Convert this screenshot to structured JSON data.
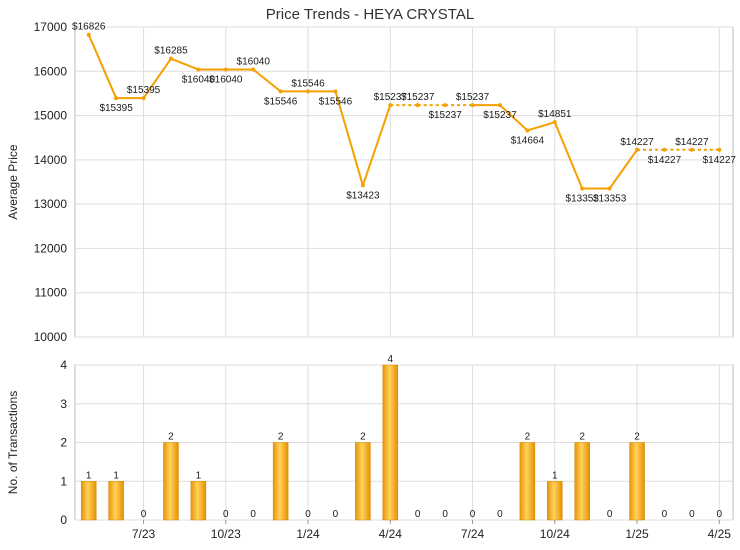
{
  "chart_data": [
    {
      "type": "line",
      "title": "Price Trends - HEYA CRYSTAL",
      "ylabel": "Average Price",
      "ylim": [
        10000,
        17000
      ],
      "yticks": [
        10000,
        11000,
        12000,
        13000,
        14000,
        15000,
        16000,
        17000
      ],
      "grid": true,
      "x": [
        "May 2023",
        "Jun 2023",
        "Jul 2023",
        "Aug 2023",
        "Sep 2023",
        "Oct 2023",
        "Nov 2023",
        "Dec 2023",
        "Jan 2024",
        "Feb 2024",
        "Mar 2024",
        "Apr 2024",
        "May 2024",
        "Jun 2024",
        "Jul 2024",
        "Aug 2024",
        "Sep 2024",
        "Oct 2024",
        "Nov 2024",
        "Dec 2024",
        "Jan 2025",
        "Feb 2025",
        "Mar 2025",
        "Apr 2025"
      ],
      "series": [
        {
          "values": [
            16826,
            15395,
            15395,
            16285,
            16040,
            16040,
            16040,
            15546,
            15546,
            15546,
            13423,
            15237,
            15237,
            15237,
            15237,
            15237,
            14664,
            14851,
            13353,
            13353,
            14227,
            14227,
            14227,
            14227
          ],
          "labels": [
            "$16826",
            "$15395",
            "$15395",
            "$16285",
            "$16040",
            "$16040",
            "$16040",
            "$15546",
            "$15546",
            "$15546",
            "$13423",
            "$15237",
            "$15237",
            "$15237",
            "$15237",
            "$15237",
            "$14664",
            "$14851",
            "$13353",
            "$13353",
            "$14227",
            "$14227",
            "$14227",
            "$14227"
          ],
          "solid": [
            true,
            true,
            true,
            true,
            true,
            true,
            true,
            true,
            true,
            true,
            true,
            true,
            false,
            false,
            false,
            true,
            true,
            true,
            true,
            true,
            true,
            false,
            false,
            false
          ]
        }
      ],
      "color": "#f5a000"
    },
    {
      "type": "bar",
      "ylabel": "No. of Transactions",
      "ylim": [
        0,
        4
      ],
      "yticks": [
        0,
        1,
        2,
        3,
        4
      ],
      "grid": true,
      "categories": [
        "May 2023",
        "Jun 2023",
        "Jul 2023",
        "Aug 2023",
        "Sep 2023",
        "Oct 2023",
        "Nov 2023",
        "Dec 2023",
        "Jan 2024",
        "Feb 2024",
        "Mar 2024",
        "Apr 2024",
        "May 2024",
        "Jun 2024",
        "Jul 2024",
        "Aug 2024",
        "Sep 2024",
        "Oct 2024",
        "Nov 2024",
        "Dec 2024",
        "Jan 2025",
        "Feb 2025",
        "Mar 2025",
        "Apr 2025"
      ],
      "values": [
        1,
        1,
        0,
        2,
        1,
        0,
        0,
        2,
        0,
        0,
        2,
        4,
        0,
        0,
        0,
        0,
        2,
        1,
        2,
        0,
        2,
        0,
        0,
        0
      ],
      "xticks": [
        {
          "index": 2,
          "label": "7/23"
        },
        {
          "index": 5,
          "label": "10/23"
        },
        {
          "index": 8,
          "label": "1/24"
        },
        {
          "index": 11,
          "label": "4/24"
        },
        {
          "index": 14,
          "label": "7/24"
        },
        {
          "index": 17,
          "label": "10/24"
        },
        {
          "index": 20,
          "label": "1/25"
        },
        {
          "index": 23,
          "label": "4/25"
        }
      ],
      "color": "#f2a400"
    }
  ]
}
